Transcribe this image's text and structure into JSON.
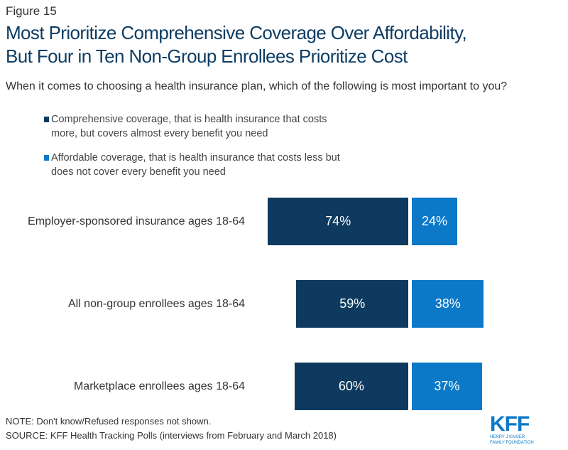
{
  "figure_label": "Figure 15",
  "title_line1": "Most Prioritize Comprehensive Coverage Over Affordability,",
  "title_line2": "But Four in Ten Non-Group Enrollees Prioritize Cost",
  "question": "When it comes to choosing a health insurance plan, which of the following is most important to you?",
  "colors": {
    "comprehensive": "#0d3a5e",
    "affordable": "#0b78c8"
  },
  "chart_data": {
    "type": "bar",
    "orientation": "horizontal-diverging-stacked",
    "categories": [
      "Employer-sponsored insurance ages 18-64",
      "All non-group enrollees ages 18-64",
      "Marketplace enrollees ages 18-64"
    ],
    "series": [
      {
        "name": "Comprehensive coverage, that is health insurance that costs more, but covers almost every benefit you need",
        "values": [
          74,
          59,
          60
        ],
        "labels": [
          "74%",
          "59%",
          "60%"
        ]
      },
      {
        "name": "Affordable coverage, that is health insurance that costs less but does not cover every benefit you need",
        "values": [
          24,
          38,
          37
        ],
        "labels": [
          "24%",
          "38%",
          "37%"
        ]
      }
    ],
    "legend_placement": "top-left",
    "grid": false
  },
  "note": "NOTE: Don't know/Refused responses not shown.",
  "source": "SOURCE: KFF Health Tracking Polls (interviews from February and March 2018)",
  "logo": {
    "mark": "KFF",
    "line1": "HENRY J KAISER",
    "line2": "FAMILY FOUNDATION"
  }
}
